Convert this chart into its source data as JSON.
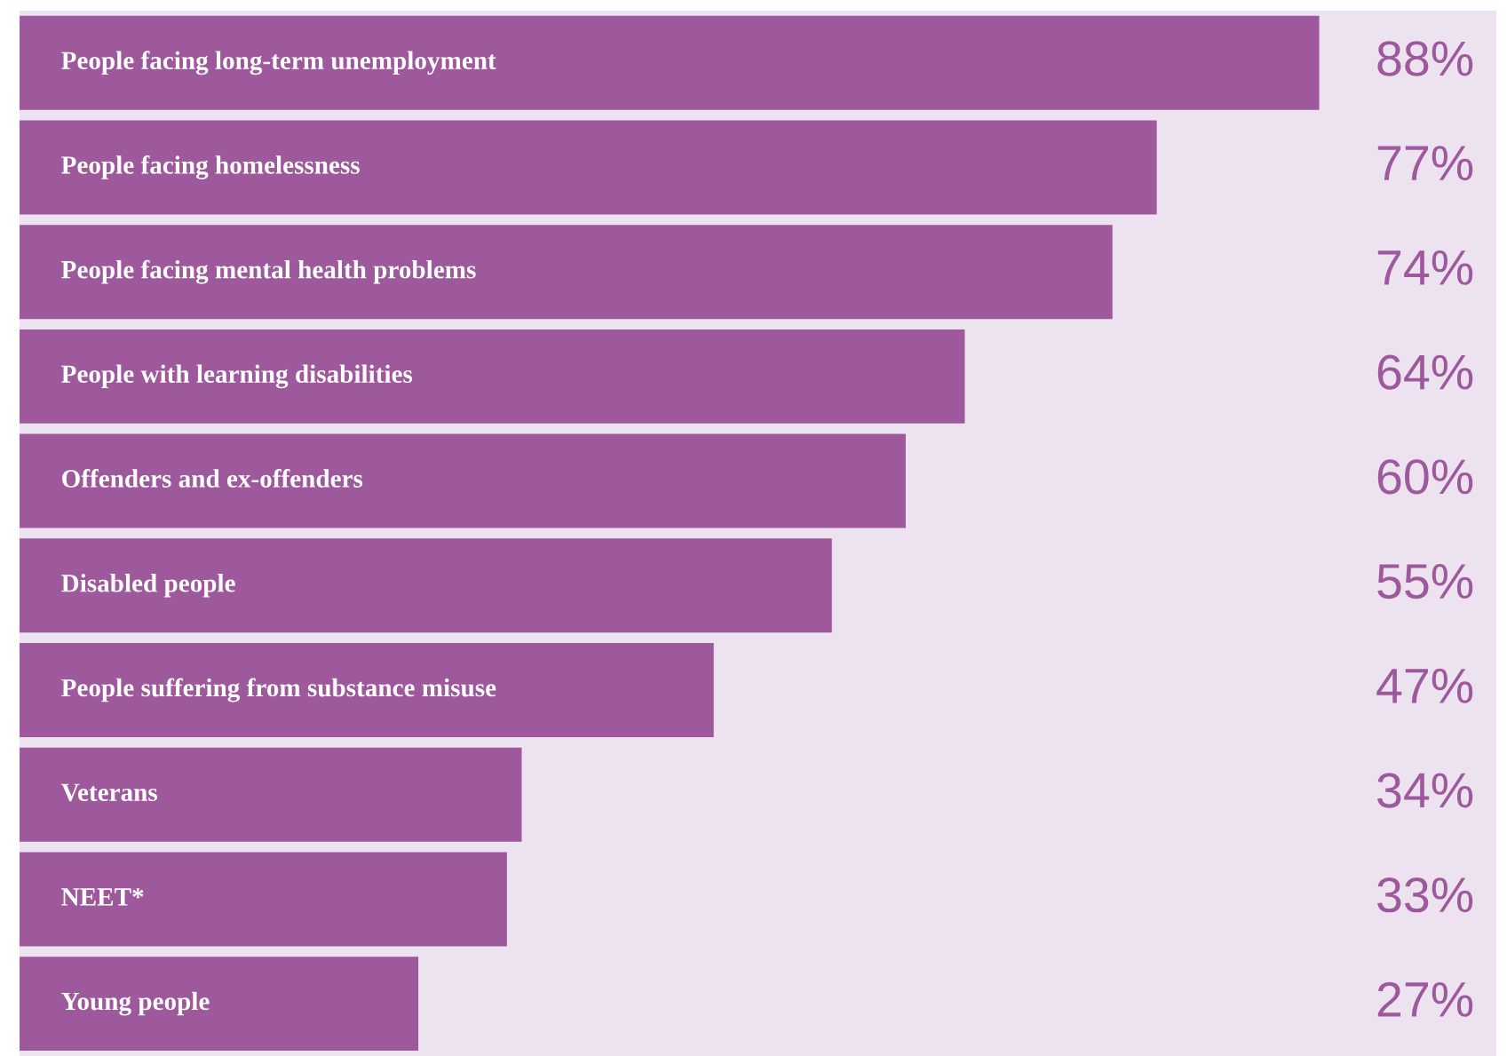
{
  "chart_data": {
    "type": "bar",
    "orientation": "horizontal",
    "categories": [
      "People facing long-term unemployment",
      "People facing homelessness",
      "People facing mental health problems",
      "People with learning disabilities",
      "Offenders and ex-offenders",
      "Disabled people",
      "People suffering from substance misuse",
      "Veterans",
      "NEET*",
      "Young people"
    ],
    "values": [
      88,
      77,
      74,
      64,
      60,
      55,
      47,
      34,
      33,
      27
    ],
    "value_labels": [
      "88%",
      "77%",
      "74%",
      "64%",
      "60%",
      "55%",
      "47%",
      "34%",
      "33%",
      "27%"
    ],
    "color": "#9e589c",
    "xlim": [
      0,
      100
    ]
  }
}
